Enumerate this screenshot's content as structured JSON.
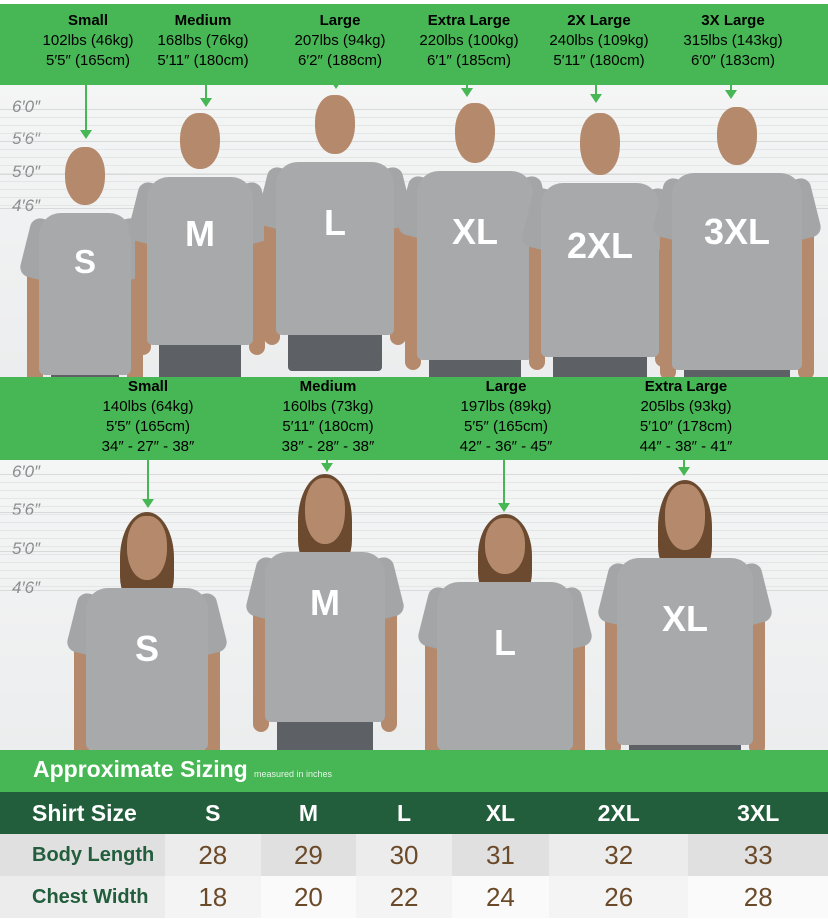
{
  "men": [
    {
      "title": "Small",
      "weight": "102lbs (46kg)",
      "height": "5′5″ (165cm)",
      "shirt": "S"
    },
    {
      "title": "Medium",
      "weight": "168lbs (76kg)",
      "height": "5′11″ (180cm)",
      "shirt": "M"
    },
    {
      "title": "Large",
      "weight": "207lbs (94kg)",
      "height": "6′2″ (188cm)",
      "shirt": "L"
    },
    {
      "title": "Extra Large",
      "weight": "220lbs (100kg)",
      "height": "6′1″ (185cm)",
      "shirt": "XL"
    },
    {
      "title": "2X Large",
      "weight": "240lbs (109kg)",
      "height": "5′11″ (180cm)",
      "shirt": "2XL"
    },
    {
      "title": "3X Large",
      "weight": "315lbs (143kg)",
      "height": "6′0″ (183cm)",
      "shirt": "3XL"
    }
  ],
  "women": [
    {
      "title": "Small",
      "weight": "140lbs (64kg)",
      "height": "5′5″ (165cm)",
      "measurements": "34″ - 27″ - 38″",
      "shirt": "S"
    },
    {
      "title": "Medium",
      "weight": "160lbs (73kg)",
      "height": "5′11″ (180cm)",
      "measurements": "38″ - 28″ - 38″",
      "shirt": "M"
    },
    {
      "title": "Large",
      "weight": "197lbs (89kg)",
      "height": "5′5″ (165cm)",
      "measurements": "42″ - 36″ - 45″",
      "shirt": "L"
    },
    {
      "title": "Extra Large",
      "weight": "205lbs (93kg)",
      "height": "5′10″ (178cm)",
      "measurements": "44″ - 38″ - 41″",
      "shirt": "XL"
    }
  ],
  "height_marks": [
    "6′0″",
    "5′6″",
    "5′0″",
    "4′6″"
  ],
  "sizing": {
    "title": "Approximate Sizing",
    "subtitle": "measured in inches",
    "header": [
      "Shirt Size",
      "S",
      "M",
      "L",
      "XL",
      "2XL",
      "3XL"
    ],
    "rows": [
      {
        "label": "Body Length",
        "values": [
          "28",
          "29",
          "30",
          "31",
          "32",
          "33"
        ]
      },
      {
        "label": "Chest Width",
        "values": [
          "18",
          "20",
          "22",
          "24",
          "26",
          "28"
        ]
      }
    ]
  },
  "colors": {
    "green": "#47b654",
    "dark_green": "#235e3c",
    "shirt_gray": "#a7a9ab"
  }
}
